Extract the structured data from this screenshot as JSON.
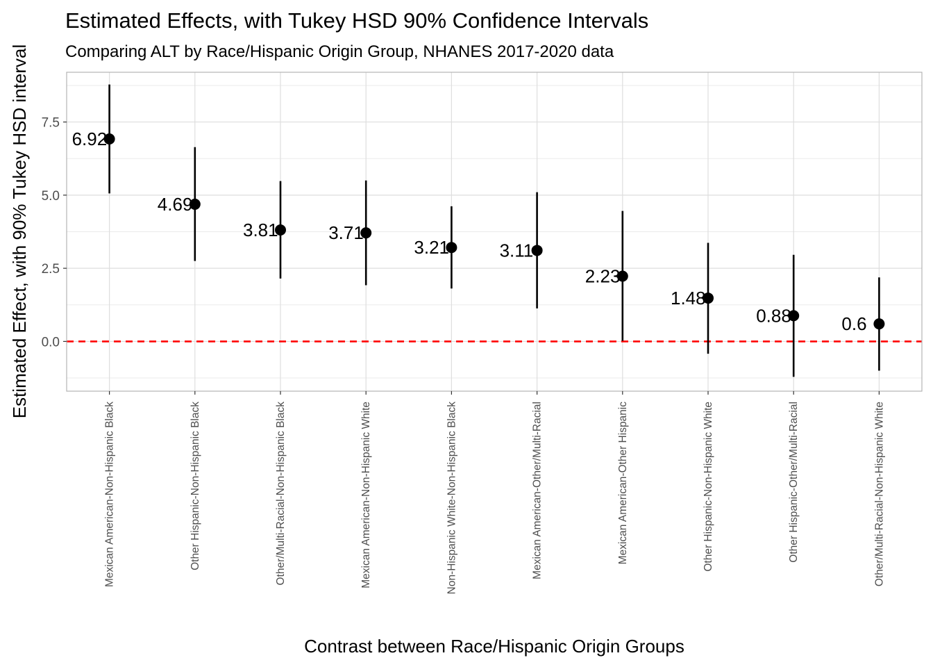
{
  "chart_data": {
    "type": "scatter",
    "title": "Estimated Effects, with Tukey HSD 90% Confidence Intervals",
    "subtitle": "Comparing ALT by Race/Hispanic Origin Group, NHANES 2017-2020 data",
    "xlabel": "Contrast between Race/Hispanic Origin Groups",
    "ylabel": "Estimated Effect, with 90% Tukey HSD interval",
    "ylim": [
      -1.7,
      9.2
    ],
    "yticks": [
      0.0,
      2.5,
      5.0,
      7.5
    ],
    "ytick_labels": [
      "0.0",
      "2.5",
      "5.0",
      "7.5"
    ],
    "reference_line": {
      "y": 0,
      "color": "#ff0000",
      "style": "dashed"
    },
    "grid": true,
    "categories": [
      "Mexican American-Non-Hispanic Black",
      "Other Hispanic-Non-Hispanic Black",
      "Other/Multi-Racial-Non-Hispanic Black",
      "Mexican American-Non-Hispanic White",
      "Non-Hispanic White-Non-Hispanic Black",
      "Mexican American-Other/Multi-Racial",
      "Mexican American-Other Hispanic",
      "Other Hispanic-Non-Hispanic White",
      "Other Hispanic-Other/Multi-Racial",
      "Other/Multi-Racial-Non-Hispanic White"
    ],
    "estimates": [
      6.92,
      4.69,
      3.81,
      3.71,
      3.21,
      3.11,
      2.23,
      1.48,
      0.88,
      0.6
    ],
    "lower": [
      5.06,
      2.75,
      2.15,
      1.92,
      1.81,
      1.13,
      0.02,
      -0.42,
      -1.21,
      -1.0
    ],
    "upper": [
      8.78,
      6.64,
      5.48,
      5.5,
      4.62,
      5.1,
      4.46,
      3.37,
      2.96,
      2.19
    ],
    "point_labels": [
      "6.92",
      "4.69",
      "3.81",
      "3.71",
      "3.21",
      "3.11",
      "2.23",
      "1.48",
      "0.88",
      "0.6"
    ],
    "colors": {
      "points": "#000000",
      "intervals": "#000000",
      "grid": "#ebebeb",
      "grid_major": "#dedede",
      "panel_border": "#b3b3b3"
    }
  }
}
